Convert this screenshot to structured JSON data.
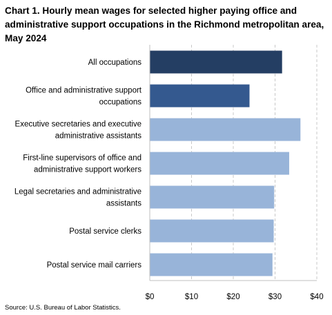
{
  "chart_data": {
    "type": "bar",
    "orientation": "horizontal",
    "title": "Chart 1. Hourly mean wages for selected higher paying office and administrative support occupations in the Richmond metropolitan area, May 2024",
    "categories": [
      [
        "All occupations"
      ],
      [
        "Office and administrative support",
        "occupations"
      ],
      [
        "Executive secretaries and executive",
        "administrative assistants"
      ],
      [
        "First-line supervisors of office and",
        "administrative support workers"
      ],
      [
        "Legal secretaries and administrative",
        "assistants"
      ],
      [
        "Postal service clerks"
      ],
      [
        "Postal service mail carriers"
      ]
    ],
    "values": [
      31.6,
      23.8,
      36.0,
      33.3,
      29.7,
      29.6,
      29.3
    ],
    "bar_colors": [
      "#243e63",
      "#34598f",
      "#98b4d9",
      "#98b4d9",
      "#98b4d9",
      "#98b4d9",
      "#98b4d9"
    ],
    "xlim": [
      0,
      40
    ],
    "xticks": [
      0,
      10,
      20,
      30,
      40
    ],
    "xtick_labels": [
      "$0",
      "$10",
      "$20",
      "$30",
      "$40"
    ],
    "grid": "vertical-dashed",
    "source": "Source: U.S. Bureau of Labor Statistics."
  }
}
